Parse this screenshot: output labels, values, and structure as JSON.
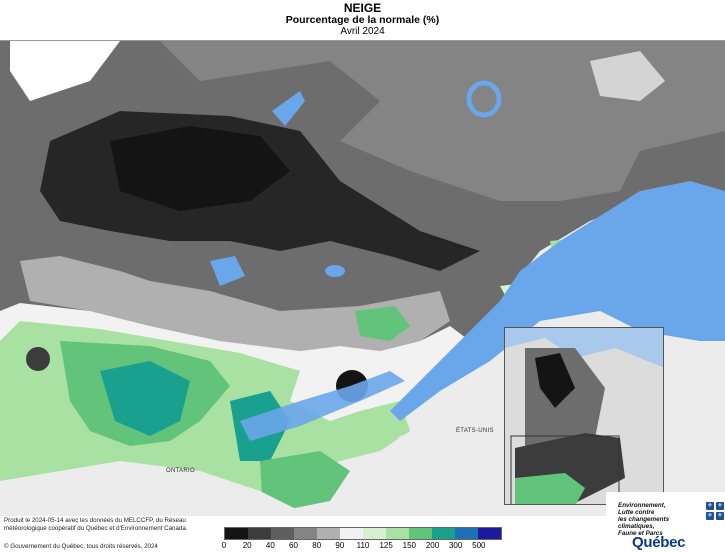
{
  "header": {
    "title": "NEIGE",
    "subtitle": "Pourcentage de la normale (%)",
    "period": "Avril 2024"
  },
  "map_labels": {
    "us": "ÉTATS-UNIS",
    "ontario": "ONTARIO"
  },
  "credits": {
    "production": "Produit le 2024-05-14 avec les données du MELCCFP, du Réseau météorologique coopératif du Québec et d'Environnement Canada.",
    "copyright": "© Gouvernement du Québec, tous droits réservés, 2024"
  },
  "legend": {
    "ticks": [
      "0",
      "20",
      "40",
      "60",
      "80",
      "90",
      "110",
      "125",
      "150",
      "200",
      "300",
      "500"
    ],
    "colors": [
      "#141414",
      "#3c3c3c",
      "#5e5e5e",
      "#848484",
      "#b0b0b0",
      "#f2f2f2",
      "#d7f0d0",
      "#a8e1a2",
      "#61c47a",
      "#1aa08e",
      "#1d6fb8",
      "#1a1aa0"
    ]
  },
  "logo": {
    "line1": "Environnement,",
    "line2": "Lutte contre",
    "line3": "les changements",
    "line4": "climatiques,",
    "line5": "Faune et Parcs",
    "wordmark": "Québec",
    "fleur_icon": "fleur-de-lis-icon"
  },
  "colors": {
    "water": "#6aa6ea",
    "land_outside": "#ececec",
    "outline": "#8a8a8a"
  }
}
